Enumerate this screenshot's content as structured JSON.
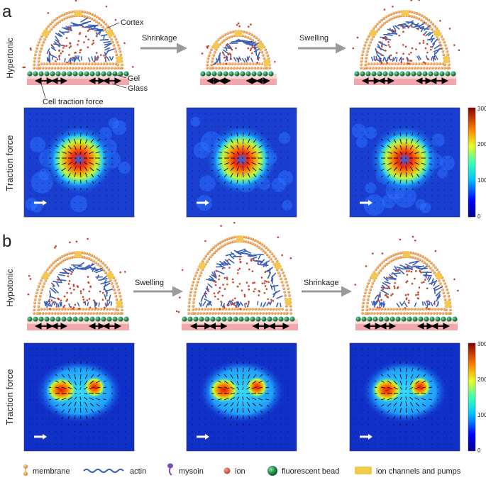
{
  "panels": {
    "a": {
      "letter": "a",
      "condition": "Hypertonic",
      "steps": [
        "Shrinkage",
        "Swelling"
      ],
      "labels": {
        "cortex": "Cortex",
        "gel": "Gel",
        "glass": "Glass",
        "traction_caption": "Cell traction force"
      },
      "row_label": "Traction force",
      "colorbar": {
        "ticks": [
          "300",
          "200",
          "100",
          "0"
        ]
      }
    },
    "b": {
      "letter": "b",
      "condition": "Hypotonic",
      "steps": [
        "Swelling",
        "Shrinkage"
      ],
      "row_label": "Traction force",
      "colorbar": {
        "ticks": [
          "300",
          "200",
          "100",
          "0"
        ]
      }
    }
  },
  "legend": {
    "items": [
      {
        "label": "membrane",
        "icon": "membrane-icon"
      },
      {
        "label": "actin",
        "icon": "actin-icon"
      },
      {
        "label": "mysoin",
        "icon": "myosin-icon"
      },
      {
        "label": "ion",
        "icon": "ion-icon"
      },
      {
        "label": "fluorescent bead",
        "icon": "bead-icon"
      },
      {
        "label": "ion channels and pumps",
        "icon": "channel-icon"
      }
    ]
  },
  "colors": {
    "membrane": "#e8893a",
    "actin": "#3a5fb8",
    "ion": "#c8442c",
    "bead": "#1f8a4c",
    "channel": "#f2c94c",
    "glass": "#f2a7ad",
    "gel": "#f7d6d6",
    "arrow_gray": "#9a9a9a"
  }
}
